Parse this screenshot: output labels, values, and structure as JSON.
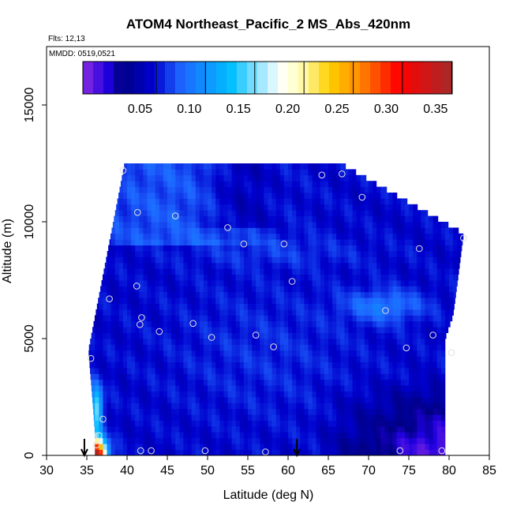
{
  "chart_data": {
    "type": "heatmap",
    "title": "ATOM4 Northeast_Pacific_2 MS_Abs_420nm",
    "flights_text": "Flts: 12,13",
    "dates_text": "MMDD: 0519,0521",
    "xlabel": "Latitude (deg N)",
    "ylabel": "Altitude (m)",
    "xlim": [
      30,
      85
    ],
    "ylim": [
      0,
      17500
    ],
    "x_ticks": [
      "30",
      "35",
      "40",
      "45",
      "50",
      "55",
      "60",
      "65",
      "70",
      "75",
      "80",
      "85"
    ],
    "y_ticks": [
      "0",
      "5000",
      "10000",
      "15000"
    ],
    "grid": false,
    "colorbar": {
      "range": [
        0,
        0.375
      ],
      "ticks": [
        "0.05",
        "0.10",
        "0.15",
        "0.20",
        "0.25",
        "0.30",
        "0.35"
      ],
      "stops": [
        {
          "v": 0.0,
          "c": "#8a2be2"
        },
        {
          "v": 0.025,
          "c": "#1f00e0"
        },
        {
          "v": 0.04,
          "c": "#000080"
        },
        {
          "v": 0.07,
          "c": "#0000cd"
        },
        {
          "v": 0.1,
          "c": "#1e64ff"
        },
        {
          "v": 0.15,
          "c": "#00bfff"
        },
        {
          "v": 0.2,
          "c": "#ffffff"
        },
        {
          "v": 0.22,
          "c": "#ffffc0"
        },
        {
          "v": 0.25,
          "c": "#ffd000"
        },
        {
          "v": 0.28,
          "c": "#ff8c00"
        },
        {
          "v": 0.32,
          "c": "#ff0000"
        },
        {
          "v": 0.375,
          "c": "#a52a2a"
        }
      ]
    },
    "profile_arrows_lat": [
      34.7,
      61.1
    ],
    "sample_points": [
      [
        39.5,
        12200
      ],
      [
        41.3,
        10400
      ],
      [
        46.0,
        10250
      ],
      [
        52.5,
        9750
      ],
      [
        54.5,
        9050
      ],
      [
        59.5,
        9050
      ],
      [
        64.2,
        12000
      ],
      [
        66.7,
        12050
      ],
      [
        69.2,
        11050
      ],
      [
        76.3,
        8850
      ],
      [
        81.8,
        9300
      ],
      [
        41.2,
        7250
      ],
      [
        60.5,
        7450
      ],
      [
        37.8,
        6700
      ],
      [
        41.8,
        5900
      ],
      [
        41.6,
        5600
      ],
      [
        48.2,
        5650
      ],
      [
        44.0,
        5300
      ],
      [
        50.5,
        5050
      ],
      [
        56.0,
        5150
      ],
      [
        72.1,
        6200
      ],
      [
        78.0,
        5150
      ],
      [
        58.2,
        4650
      ],
      [
        74.7,
        4600
      ],
      [
        80.3,
        4400
      ],
      [
        35.5,
        4150
      ],
      [
        37.0,
        1550
      ],
      [
        36.5,
        850
      ],
      [
        36.2,
        450
      ],
      [
        41.7,
        200
      ],
      [
        43.0,
        200
      ],
      [
        49.7,
        200
      ],
      [
        57.2,
        150
      ],
      [
        73.9,
        200
      ],
      [
        79.1,
        200
      ]
    ]
  }
}
